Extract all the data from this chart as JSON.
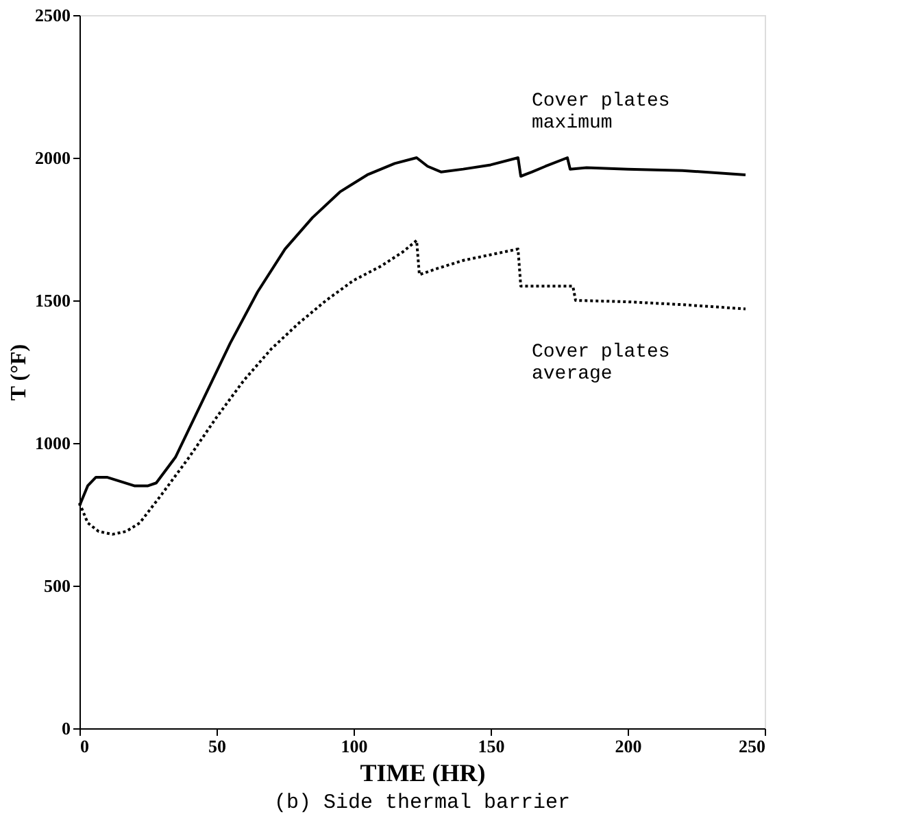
{
  "chart_data": {
    "type": "line",
    "title": "(b)  Side thermal barrier",
    "xlabel": "TIME (HR)",
    "ylabel": "T (°F)",
    "xlim": [
      0,
      250
    ],
    "xticks": [
      0,
      50,
      100,
      150,
      200,
      250
    ],
    "ylim": [
      0,
      2500
    ],
    "yticks": [
      0,
      500,
      1000,
      1500,
      2000,
      2500
    ],
    "grid": false,
    "marker": "none",
    "series": [
      {
        "color": "#000000",
        "line_style": "solid",
        "x": [
          0,
          3,
          6,
          10,
          15,
          20,
          25,
          28,
          35,
          45,
          55,
          65,
          75,
          85,
          95,
          105,
          115,
          123,
          127,
          132,
          140,
          150,
          160,
          161,
          165,
          170,
          178,
          179,
          185,
          200,
          220,
          243
        ],
        "values": [
          780,
          850,
          880,
          880,
          865,
          850,
          850,
          860,
          950,
          1150,
          1350,
          1530,
          1680,
          1790,
          1880,
          1940,
          1980,
          2000,
          1970,
          1950,
          1960,
          1975,
          2000,
          1935,
          1950,
          1970,
          2000,
          1960,
          1965,
          1960,
          1955,
          1940
        ]
      },
      {
        "color": "#000000",
        "line_style": "dotted",
        "x": [
          0,
          3,
          7,
          12,
          17,
          22,
          30,
          40,
          50,
          60,
          70,
          80,
          90,
          100,
          110,
          118,
          123,
          124,
          130,
          140,
          150,
          160,
          161,
          170,
          180,
          181,
          200,
          220,
          243
        ],
        "values": [
          790,
          720,
          690,
          680,
          690,
          720,
          820,
          950,
          1090,
          1220,
          1330,
          1420,
          1500,
          1570,
          1620,
          1670,
          1710,
          1590,
          1610,
          1640,
          1660,
          1680,
          1550,
          1550,
          1550,
          1500,
          1495,
          1485,
          1470
        ]
      }
    ],
    "annotations": [
      "Cover plates\nmaximum",
      "Cover plates\naverage"
    ]
  }
}
